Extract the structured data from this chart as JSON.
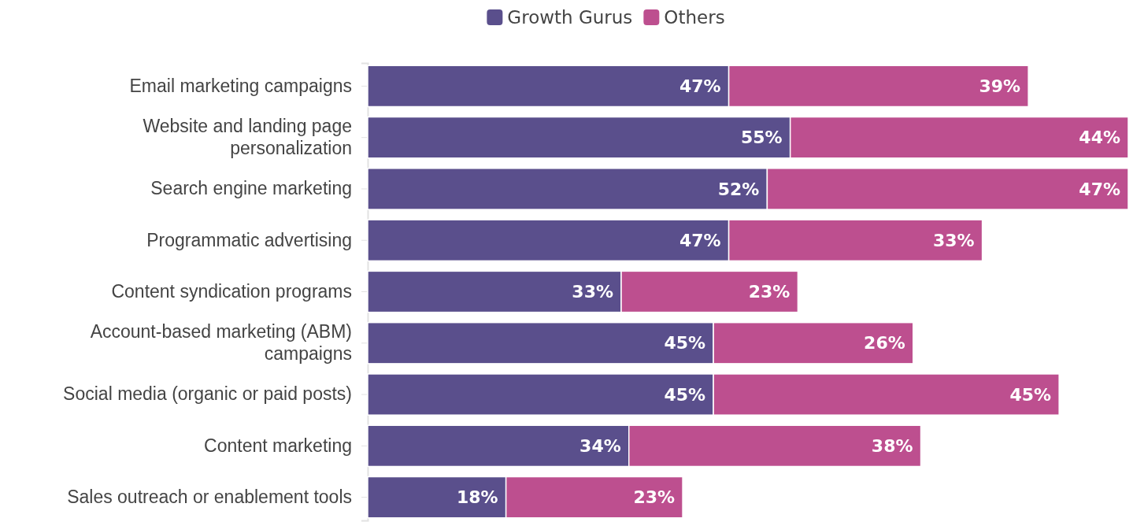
{
  "chart_data": {
    "type": "bar",
    "orientation": "horizontal",
    "stacked": true,
    "legend": "top",
    "tick_labels": "y",
    "categories": [
      "Email marketing campaigns",
      "Website and landing page personalization",
      "Search engine marketing",
      "Programmatic advertising",
      "Content syndication programs",
      "Account-based marketing (ABM) campaigns",
      "Social media (organic or paid posts)",
      "Content marketing",
      "Sales outreach or enablement tools"
    ],
    "series": [
      {
        "name": "Growth Gurus",
        "color": "#5a4f8c",
        "values": [
          47,
          55,
          52,
          47,
          33,
          45,
          45,
          34,
          18
        ],
        "value_labels": [
          "47%",
          "55%",
          "52%",
          "47%",
          "33%",
          "45%",
          "45%",
          "34%",
          "18%"
        ]
      },
      {
        "name": "Others",
        "color": "#bd4f8f",
        "values": [
          39,
          44,
          47,
          33,
          23,
          26,
          45,
          38,
          23
        ],
        "value_labels": [
          "39%",
          "44%",
          "47%",
          "33%",
          "23%",
          "26%",
          "45%",
          "38%",
          "23%"
        ]
      }
    ]
  }
}
